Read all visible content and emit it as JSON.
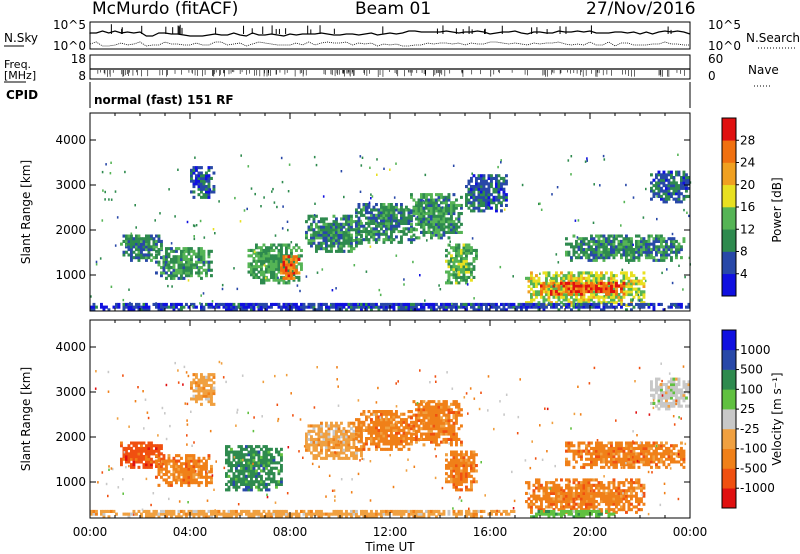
{
  "header": {
    "station": "McMurdo (fitACF)",
    "beam": "Beam 01",
    "date": "27/Nov/2016"
  },
  "noise_panel": {
    "left_label": "N.Sky",
    "right_label": "N.Search",
    "left_ticks": [
      "10^5",
      "10^0"
    ],
    "right_ticks": [
      "10^5",
      "10^0"
    ]
  },
  "freq_panel": {
    "left_label_1": "Freq.",
    "left_label_2": "[MHz]",
    "left_ticks": [
      "18",
      "8"
    ],
    "right_label": "Nave",
    "right_ticks": [
      "60",
      "0"
    ],
    "cpid_label": "CPID",
    "cpid_text": "normal (fast) 151 RF"
  },
  "colors": {
    "power": [
      "#1010e0",
      "#2848a8",
      "#2e8a4e",
      "#55b455",
      "#e8e020",
      "#f0a020",
      "#f07010",
      "#e01010"
    ],
    "velocity": [
      "#e01010",
      "#f05010",
      "#f08018",
      "#f0a040",
      "#c8c8c8",
      "#60c040",
      "#2e8a4e",
      "#2848a8",
      "#1010e0"
    ]
  },
  "chart_data": [
    {
      "type": "heatmap",
      "name": "power",
      "ylabel": "Slant Range [km]",
      "yticks": [
        "1000",
        "2000",
        "3000",
        "4000"
      ],
      "ylim": [
        200,
        4600
      ],
      "xlim_hours": [
        0,
        24
      ],
      "colorbar_label": "Power [dB]",
      "colorbar_ticks": [
        "4",
        "8",
        "12",
        "16",
        "20",
        "24",
        "28"
      ],
      "colorbar_range": [
        0,
        32
      ],
      "blobs": [
        {
          "t0": 1.2,
          "t1": 2.9,
          "r0": 1300,
          "r1": 1900,
          "v": 9
        },
        {
          "t0": 2.6,
          "t1": 4.8,
          "r0": 900,
          "r1": 1600,
          "v": 11
        },
        {
          "t0": 4.0,
          "t1": 4.9,
          "r0": 2700,
          "r1": 3400,
          "v": 7
        },
        {
          "t0": 6.3,
          "t1": 8.4,
          "r0": 800,
          "r1": 1700,
          "v": 12
        },
        {
          "t0": 7.6,
          "t1": 8.3,
          "r0": 900,
          "r1": 1400,
          "v": 26
        },
        {
          "t0": 8.6,
          "t1": 10.8,
          "r0": 1500,
          "r1": 2300,
          "v": 10
        },
        {
          "t0": 10.6,
          "t1": 12.9,
          "r0": 1700,
          "r1": 2600,
          "v": 9
        },
        {
          "t0": 12.8,
          "t1": 14.8,
          "r0": 1800,
          "r1": 2800,
          "v": 11
        },
        {
          "t0": 14.2,
          "t1": 15.4,
          "r0": 800,
          "r1": 1700,
          "v": 13
        },
        {
          "t0": 15.0,
          "t1": 16.7,
          "r0": 2400,
          "r1": 3200,
          "v": 7
        },
        {
          "t0": 17.4,
          "t1": 22.2,
          "r0": 300,
          "r1": 1050,
          "v": 17
        },
        {
          "t0": 18.0,
          "t1": 21.4,
          "r0": 550,
          "r1": 850,
          "v": 27
        },
        {
          "t0": 19.0,
          "t1": 23.8,
          "r0": 1300,
          "r1": 1850,
          "v": 10
        },
        {
          "t0": 22.4,
          "t1": 24.0,
          "r0": 2600,
          "r1": 3300,
          "v": 7
        },
        {
          "t0": 0.0,
          "t1": 24.0,
          "r0": 200,
          "r1": 380,
          "v": 5
        }
      ]
    },
    {
      "type": "heatmap",
      "name": "velocity",
      "ylabel": "Slant Range [km]",
      "xlabel": "Time UT",
      "xticks": [
        "00:00",
        "04:00",
        "08:00",
        "12:00",
        "16:00",
        "20:00",
        "00:00"
      ],
      "yticks": [
        "1000",
        "2000",
        "3000",
        "4000"
      ],
      "ylim": [
        200,
        4600
      ],
      "xlim_hours": [
        0,
        24
      ],
      "colorbar_label": "Velocity [m s⁻¹]",
      "colorbar_ticks": [
        "-1000",
        "-500",
        "-100",
        "-25",
        "25",
        "100",
        "500",
        "1000"
      ],
      "blobs": [
        {
          "t0": 1.2,
          "t1": 2.9,
          "r0": 1300,
          "r1": 1900,
          "c": 1
        },
        {
          "t0": 2.6,
          "t1": 4.8,
          "r0": 900,
          "r1": 1600,
          "c": 2
        },
        {
          "t0": 4.0,
          "t1": 4.9,
          "r0": 2700,
          "r1": 3400,
          "c": 3
        },
        {
          "t0": 5.4,
          "t1": 7.6,
          "r0": 800,
          "r1": 1800,
          "c": 6
        },
        {
          "t0": 8.6,
          "t1": 10.8,
          "r0": 1500,
          "r1": 2300,
          "c": 3
        },
        {
          "t0": 10.6,
          "t1": 12.9,
          "r0": 1700,
          "r1": 2600,
          "c": 2
        },
        {
          "t0": 12.8,
          "t1": 14.8,
          "r0": 1800,
          "r1": 2800,
          "c": 2
        },
        {
          "t0": 14.2,
          "t1": 15.4,
          "r0": 800,
          "r1": 1700,
          "c": 2
        },
        {
          "t0": 17.4,
          "t1": 22.2,
          "r0": 300,
          "r1": 1050,
          "c": 2
        },
        {
          "t0": 17.6,
          "t1": 21.0,
          "r0": 200,
          "r1": 380,
          "c": 5
        },
        {
          "t0": 19.0,
          "t1": 23.8,
          "r0": 1300,
          "r1": 1850,
          "c": 2
        },
        {
          "t0": 22.4,
          "t1": 24.0,
          "r0": 2600,
          "r1": 3300,
          "c": 4
        },
        {
          "t0": 0.0,
          "t1": 17.0,
          "r0": 200,
          "r1": 360,
          "c": 3
        }
      ]
    }
  ]
}
